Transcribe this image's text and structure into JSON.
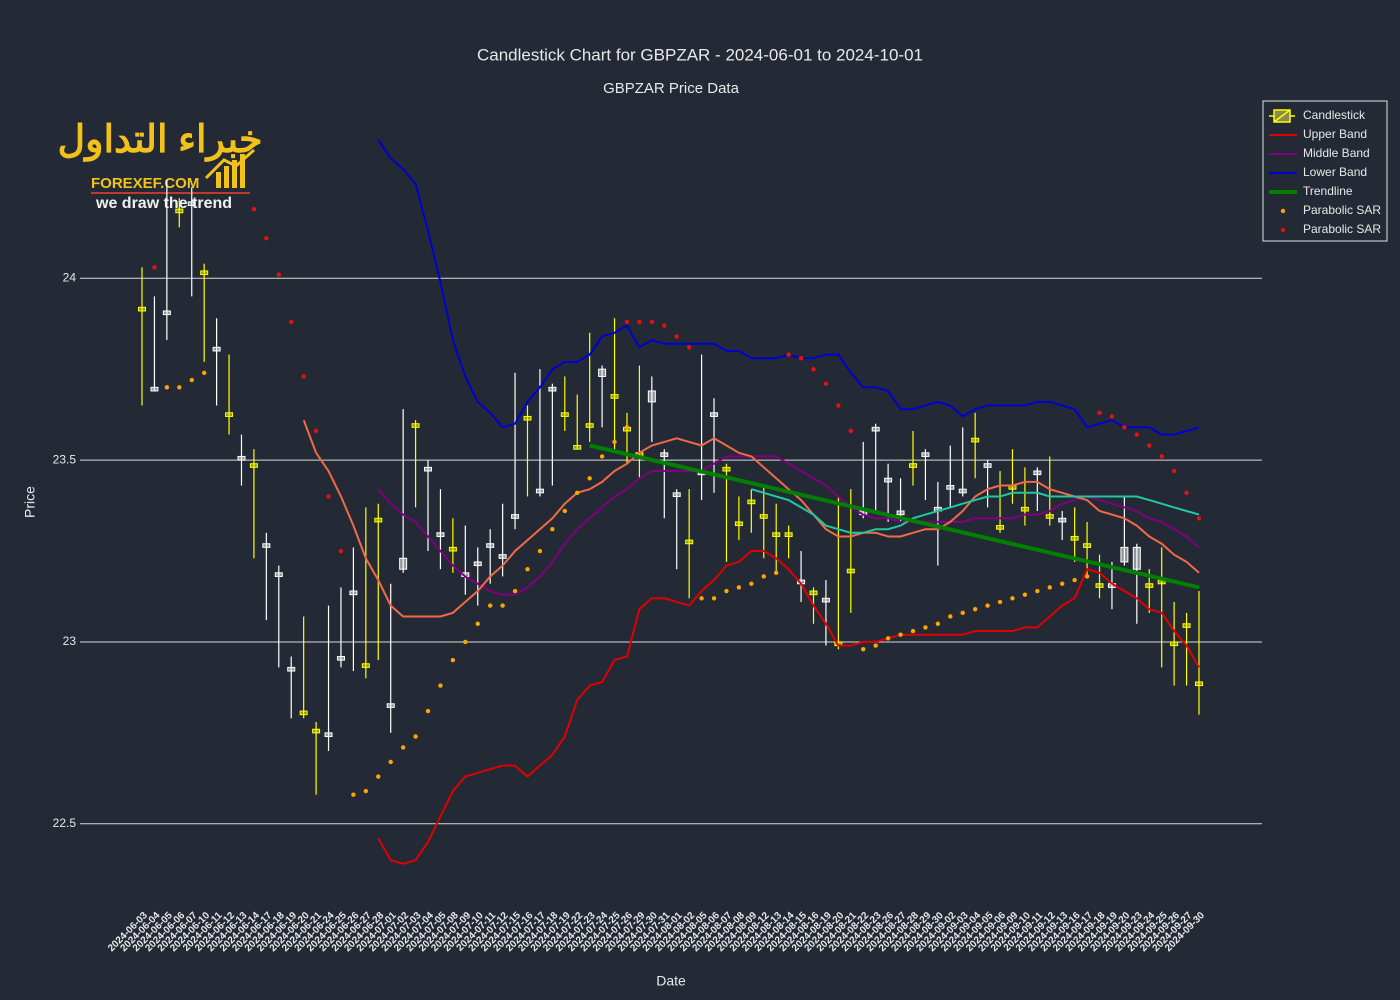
{
  "chart_data": {
    "type": "candlestick",
    "title": "Candlestick Chart for GBPZAR - 2024-06-01 to 2024-10-01",
    "subtitle": "GBPZAR Price Data",
    "x_label": "Date",
    "y_label": "Price",
    "candlestick_name": "Candlestick",
    "increasing_color": "#ffffff",
    "decreasing_color": "#ffff00",
    "ylim": [
      22.34,
      24.49
    ],
    "yticks": [
      22.5,
      23,
      23.5,
      24
    ],
    "grid": true,
    "legend": "top-right",
    "categories": [
      "2024-06-03",
      "2024-06-04",
      "2024-06-05",
      "2024-06-06",
      "2024-06-07",
      "2024-06-10",
      "2024-06-11",
      "2024-06-12",
      "2024-06-13",
      "2024-06-14",
      "2024-06-17",
      "2024-06-18",
      "2024-06-19",
      "2024-06-20",
      "2024-06-21",
      "2024-06-24",
      "2024-06-25",
      "2024-06-26",
      "2024-06-27",
      "2024-06-28",
      "2024-07-01",
      "2024-07-02",
      "2024-07-03",
      "2024-07-04",
      "2024-07-05",
      "2024-07-08",
      "2024-07-09",
      "2024-07-10",
      "2024-07-11",
      "2024-07-12",
      "2024-07-15",
      "2024-07-16",
      "2024-07-17",
      "2024-07-18",
      "2024-07-19",
      "2024-07-22",
      "2024-07-23",
      "2024-07-24",
      "2024-07-25",
      "2024-07-26",
      "2024-07-29",
      "2024-07-30",
      "2024-07-31",
      "2024-08-01",
      "2024-08-02",
      "2024-08-05",
      "2024-08-06",
      "2024-08-07",
      "2024-08-08",
      "2024-08-09",
      "2024-08-12",
      "2024-08-13",
      "2024-08-14",
      "2024-08-15",
      "2024-08-16",
      "2024-08-19",
      "2024-08-20",
      "2024-08-21",
      "2024-08-22",
      "2024-08-23",
      "2024-08-26",
      "2024-08-27",
      "2024-08-28",
      "2024-08-29",
      "2024-08-30",
      "2024-09-02",
      "2024-09-03",
      "2024-09-04",
      "2024-09-05",
      "2024-09-06",
      "2024-09-09",
      "2024-09-10",
      "2024-09-11",
      "2024-09-12",
      "2024-09-13",
      "2024-09-16",
      "2024-09-17",
      "2024-09-18",
      "2024-09-19",
      "2024-09-20",
      "2024-09-23",
      "2024-09-24",
      "2024-09-25",
      "2024-09-26",
      "2024-09-27",
      "2024-09-30"
    ],
    "open": [
      23.92,
      23.69,
      23.9,
      24.19,
      24.2,
      24.02,
      23.8,
      23.63,
      23.5,
      23.49,
      23.26,
      23.18,
      22.92,
      22.81,
      22.76,
      22.74,
      22.95,
      23.13,
      22.94,
      23.34,
      22.82,
      23.2,
      23.6,
      23.47,
      23.29,
      23.26,
      23.18,
      23.21,
      23.26,
      23.23,
      23.34,
      23.62,
      23.41,
      23.69,
      23.63,
      23.54,
      23.6,
      23.73,
      23.68,
      23.59,
      23.52,
      23.66,
      23.51,
      23.4,
      23.28,
      23.46,
      23.62,
      23.48,
      23.33,
      23.39,
      23.35,
      23.3,
      23.3,
      23.16,
      23.14,
      23.11,
      23.0,
      23.2,
      23.35,
      23.58,
      23.44,
      23.35,
      23.49,
      23.51,
      23.36,
      23.42,
      23.41,
      23.56,
      23.48,
      23.32,
      23.43,
      23.37,
      23.46,
      23.35,
      23.33,
      23.29,
      23.27,
      23.16,
      23.15,
      23.22,
      23.2,
      23.16,
      23.17,
      23.0,
      23.05,
      22.89
    ],
    "high": [
      24.03,
      23.95,
      24.27,
      24.22,
      24.25,
      24.04,
      23.89,
      23.79,
      23.57,
      23.53,
      23.3,
      23.21,
      22.96,
      23.07,
      22.78,
      23.1,
      23.15,
      23.26,
      23.37,
      23.38,
      23.16,
      23.64,
      23.61,
      23.5,
      23.42,
      23.34,
      23.32,
      23.26,
      23.31,
      23.38,
      23.74,
      23.65,
      23.75,
      23.71,
      23.73,
      23.68,
      23.85,
      23.76,
      23.89,
      23.63,
      23.76,
      23.73,
      23.53,
      23.42,
      23.42,
      23.79,
      23.67,
      23.49,
      23.4,
      23.42,
      23.43,
      23.38,
      23.32,
      23.25,
      23.15,
      23.17,
      23.4,
      23.42,
      23.55,
      23.6,
      23.49,
      23.45,
      23.58,
      23.53,
      23.44,
      23.54,
      23.59,
      23.63,
      23.5,
      23.47,
      23.53,
      23.48,
      23.48,
      23.51,
      23.36,
      23.37,
      23.33,
      23.24,
      23.22,
      23.4,
      23.27,
      23.2,
      23.26,
      23.11,
      23.08,
      23.14
    ],
    "low": [
      23.65,
      23.69,
      23.83,
      24.14,
      23.95,
      23.77,
      23.65,
      23.57,
      23.43,
      23.23,
      23.06,
      22.93,
      22.79,
      22.79,
      22.58,
      22.7,
      22.93,
      22.92,
      22.9,
      22.95,
      22.75,
      23.19,
      23.37,
      23.25,
      23.2,
      23.19,
      23.13,
      23.1,
      23.16,
      23.18,
      23.31,
      23.4,
      23.4,
      23.43,
      23.58,
      23.53,
      23.55,
      23.59,
      23.53,
      23.49,
      23.45,
      23.55,
      23.34,
      23.2,
      23.12,
      23.39,
      23.41,
      23.22,
      23.28,
      23.3,
      23.23,
      23.19,
      23.23,
      23.11,
      23.05,
      22.99,
      22.98,
      23.08,
      23.34,
      23.36,
      23.33,
      23.33,
      23.43,
      23.39,
      23.21,
      23.37,
      23.4,
      23.45,
      23.37,
      23.3,
      23.38,
      23.32,
      23.36,
      23.32,
      23.28,
      23.22,
      23.18,
      23.12,
      23.09,
      23.21,
      23.05,
      23.08,
      22.93,
      22.88,
      22.88,
      22.8
    ],
    "close": [
      23.91,
      23.7,
      23.91,
      24.18,
      24.21,
      24.01,
      23.81,
      23.62,
      23.51,
      23.48,
      23.27,
      23.19,
      22.93,
      22.8,
      22.75,
      22.75,
      22.96,
      23.14,
      22.93,
      23.33,
      22.83,
      23.23,
      23.59,
      23.48,
      23.3,
      23.25,
      23.19,
      23.22,
      23.27,
      23.24,
      23.35,
      23.61,
      23.42,
      23.7,
      23.62,
      23.53,
      23.59,
      23.75,
      23.67,
      23.58,
      23.51,
      23.69,
      23.52,
      23.41,
      23.27,
      23.47,
      23.63,
      23.47,
      23.32,
      23.38,
      23.34,
      23.29,
      23.29,
      23.17,
      23.13,
      23.12,
      22.99,
      23.19,
      23.36,
      23.59,
      23.45,
      23.36,
      23.48,
      23.52,
      23.37,
      23.43,
      23.42,
      23.55,
      23.49,
      23.31,
      23.42,
      23.36,
      23.47,
      23.34,
      23.34,
      23.28,
      23.26,
      23.15,
      23.16,
      23.26,
      23.26,
      23.15,
      23.16,
      22.99,
      23.04,
      22.88
    ],
    "series": [
      {
        "name": "Upper Band",
        "color": "#e00000",
        "mode": "lines",
        "values": [
          null,
          null,
          null,
          null,
          null,
          null,
          null,
          null,
          null,
          null,
          null,
          null,
          null,
          null,
          null,
          null,
          null,
          null,
          null,
          22.46,
          22.4,
          22.39,
          22.4,
          22.45,
          22.52,
          22.59,
          22.63,
          22.64,
          22.65,
          22.66,
          22.66,
          22.63,
          22.66,
          22.69,
          22.74,
          22.84,
          22.88,
          22.89,
          22.95,
          22.96,
          23.09,
          23.12,
          23.12,
          23.11,
          23.1,
          23.14,
          23.17,
          23.21,
          23.22,
          23.25,
          23.25,
          23.23,
          23.2,
          23.16,
          23.1,
          23.05,
          22.99,
          22.99,
          23.0,
          23.0,
          23.01,
          23.02,
          23.02,
          23.02,
          23.02,
          23.02,
          23.02,
          23.03,
          23.03,
          23.03,
          23.03,
          23.04,
          23.04,
          23.07,
          23.1,
          23.12,
          23.2,
          23.19,
          23.16,
          23.14,
          23.12,
          23.09,
          23.08,
          23.03,
          22.99,
          22.93
        ]
      },
      {
        "name": "Middle Band",
        "color": "#800080",
        "mode": "lines",
        "values": [
          null,
          null,
          null,
          null,
          null,
          null,
          null,
          null,
          null,
          null,
          null,
          null,
          null,
          null,
          null,
          null,
          null,
          null,
          null,
          23.42,
          23.38,
          23.35,
          23.33,
          23.29,
          23.25,
          23.21,
          23.18,
          23.16,
          23.14,
          23.13,
          23.13,
          23.15,
          23.18,
          23.22,
          23.27,
          23.31,
          23.34,
          23.37,
          23.4,
          23.42,
          23.45,
          23.47,
          23.47,
          23.47,
          23.47,
          23.47,
          23.49,
          23.51,
          23.51,
          23.51,
          23.51,
          23.51,
          23.49,
          23.47,
          23.45,
          23.43,
          23.4,
          23.37,
          23.35,
          23.34,
          23.34,
          23.33,
          23.33,
          23.33,
          23.33,
          23.33,
          23.33,
          23.34,
          23.34,
          23.34,
          23.34,
          23.35,
          23.35,
          23.36,
          23.38,
          23.39,
          23.4,
          23.39,
          23.38,
          23.37,
          23.36,
          23.34,
          23.33,
          23.31,
          23.29,
          23.26
        ]
      },
      {
        "name": "Lower Band",
        "color": "#0000d0",
        "mode": "lines",
        "values": [
          null,
          null,
          null,
          null,
          null,
          null,
          null,
          null,
          null,
          null,
          null,
          null,
          null,
          null,
          null,
          null,
          null,
          null,
          null,
          24.38,
          24.33,
          24.3,
          24.26,
          24.13,
          23.99,
          23.83,
          23.73,
          23.66,
          23.63,
          23.59,
          23.6,
          23.66,
          23.7,
          23.75,
          23.77,
          23.77,
          23.79,
          23.84,
          23.85,
          23.87,
          23.81,
          23.83,
          23.82,
          23.82,
          23.82,
          23.82,
          23.82,
          23.8,
          23.8,
          23.78,
          23.78,
          23.78,
          23.79,
          23.78,
          23.78,
          23.79,
          23.79,
          23.74,
          23.7,
          23.7,
          23.69,
          23.64,
          23.64,
          23.65,
          23.66,
          23.65,
          23.62,
          23.64,
          23.65,
          23.65,
          23.65,
          23.65,
          23.66,
          23.66,
          23.65,
          23.64,
          23.59,
          23.6,
          23.61,
          23.59,
          23.59,
          23.59,
          23.57,
          23.57,
          23.58,
          23.59
        ]
      },
      {
        "color": "#f06a48",
        "mode": "lines",
        "values": [
          null,
          null,
          null,
          null,
          null,
          null,
          null,
          null,
          null,
          null,
          null,
          null,
          null,
          23.61,
          23.52,
          23.47,
          23.4,
          23.32,
          23.23,
          23.17,
          23.1,
          23.07,
          23.07,
          23.07,
          23.07,
          23.08,
          23.11,
          23.14,
          23.18,
          23.21,
          23.25,
          23.28,
          23.31,
          23.34,
          23.38,
          23.41,
          23.42,
          23.44,
          23.47,
          23.49,
          23.52,
          23.54,
          23.55,
          23.56,
          23.55,
          23.54,
          23.56,
          23.54,
          23.52,
          23.51,
          23.48,
          23.45,
          23.42,
          23.39,
          23.35,
          23.31,
          23.29,
          23.29,
          23.3,
          23.3,
          23.29,
          23.29,
          23.3,
          23.31,
          23.31,
          23.33,
          23.36,
          23.4,
          23.42,
          23.43,
          23.43,
          23.44,
          23.44,
          23.42,
          23.41,
          23.4,
          23.39,
          23.36,
          23.35,
          23.34,
          23.32,
          23.29,
          23.27,
          23.24,
          23.22,
          23.19
        ]
      },
      {
        "color": "#20c8a0",
        "mode": "lines",
        "values": [
          null,
          null,
          null,
          null,
          null,
          null,
          null,
          null,
          null,
          null,
          null,
          null,
          null,
          null,
          null,
          null,
          null,
          null,
          null,
          null,
          null,
          null,
          null,
          null,
          null,
          null,
          null,
          null,
          null,
          null,
          null,
          null,
          null,
          null,
          null,
          null,
          null,
          null,
          null,
          null,
          null,
          null,
          null,
          null,
          null,
          null,
          null,
          null,
          null,
          23.42,
          23.41,
          23.4,
          23.39,
          23.37,
          23.35,
          23.32,
          23.31,
          23.3,
          23.3,
          23.31,
          23.31,
          23.32,
          23.34,
          23.35,
          23.36,
          23.37,
          23.38,
          23.39,
          23.4,
          23.4,
          23.41,
          23.41,
          23.41,
          23.4,
          23.4,
          23.4,
          23.4,
          23.4,
          23.4,
          23.4,
          23.4,
          23.39,
          23.38,
          23.37,
          23.36,
          23.35
        ]
      },
      {
        "name": "Trendline",
        "color": "#008000",
        "mode": "lines",
        "width": 4,
        "x": [
          "2024-07-23",
          "2024-09-30"
        ],
        "values": [
          23.54,
          23.15
        ]
      },
      {
        "name": "Parabolic SAR",
        "color": "#ffa500",
        "mode": "markers",
        "values": [
          null,
          null,
          23.7,
          23.7,
          23.72,
          23.74,
          null,
          null,
          null,
          null,
          null,
          null,
          null,
          null,
          null,
          null,
          null,
          22.58,
          22.59,
          22.63,
          22.67,
          22.71,
          22.74,
          22.81,
          22.88,
          22.95,
          23.0,
          23.05,
          23.1,
          23.1,
          23.14,
          23.2,
          23.25,
          23.31,
          23.36,
          23.41,
          23.45,
          23.51,
          23.55,
          23.59,
          null,
          null,
          null,
          null,
          null,
          23.12,
          23.12,
          23.14,
          23.15,
          23.16,
          23.18,
          23.19,
          null,
          null,
          null,
          null,
          null,
          null,
          22.98,
          22.99,
          23.01,
          23.02,
          23.03,
          23.04,
          23.05,
          23.07,
          23.08,
          23.09,
          23.1,
          23.11,
          23.12,
          23.13,
          23.14,
          23.15,
          23.16,
          23.17,
          23.18,
          null,
          null,
          null,
          null,
          null,
          null,
          null,
          null,
          null
        ]
      },
      {
        "name": "Parabolic SAR",
        "color": "#e81010",
        "mode": "markers",
        "values": [
          null,
          24.03,
          null,
          null,
          null,
          null,
          null,
          null,
          null,
          24.19,
          24.11,
          24.01,
          23.88,
          23.73,
          23.58,
          23.4,
          23.25,
          null,
          null,
          null,
          null,
          null,
          null,
          null,
          null,
          null,
          null,
          null,
          null,
          null,
          null,
          null,
          null,
          null,
          null,
          null,
          null,
          null,
          null,
          23.88,
          23.88,
          23.88,
          23.87,
          23.84,
          23.81,
          null,
          null,
          null,
          null,
          null,
          null,
          null,
          23.79,
          23.78,
          23.75,
          23.71,
          23.65,
          23.58,
          null,
          null,
          null,
          null,
          null,
          null,
          null,
          null,
          null,
          null,
          null,
          null,
          null,
          null,
          null,
          null,
          null,
          null,
          null,
          23.63,
          23.62,
          23.59,
          23.57,
          23.54,
          23.51,
          23.47,
          23.41,
          23.34
        ]
      }
    ]
  },
  "logo": {
    "arabic": "خبراء التداول",
    "site": "FOREXEF.COM",
    "tagline": "we draw the trend"
  }
}
